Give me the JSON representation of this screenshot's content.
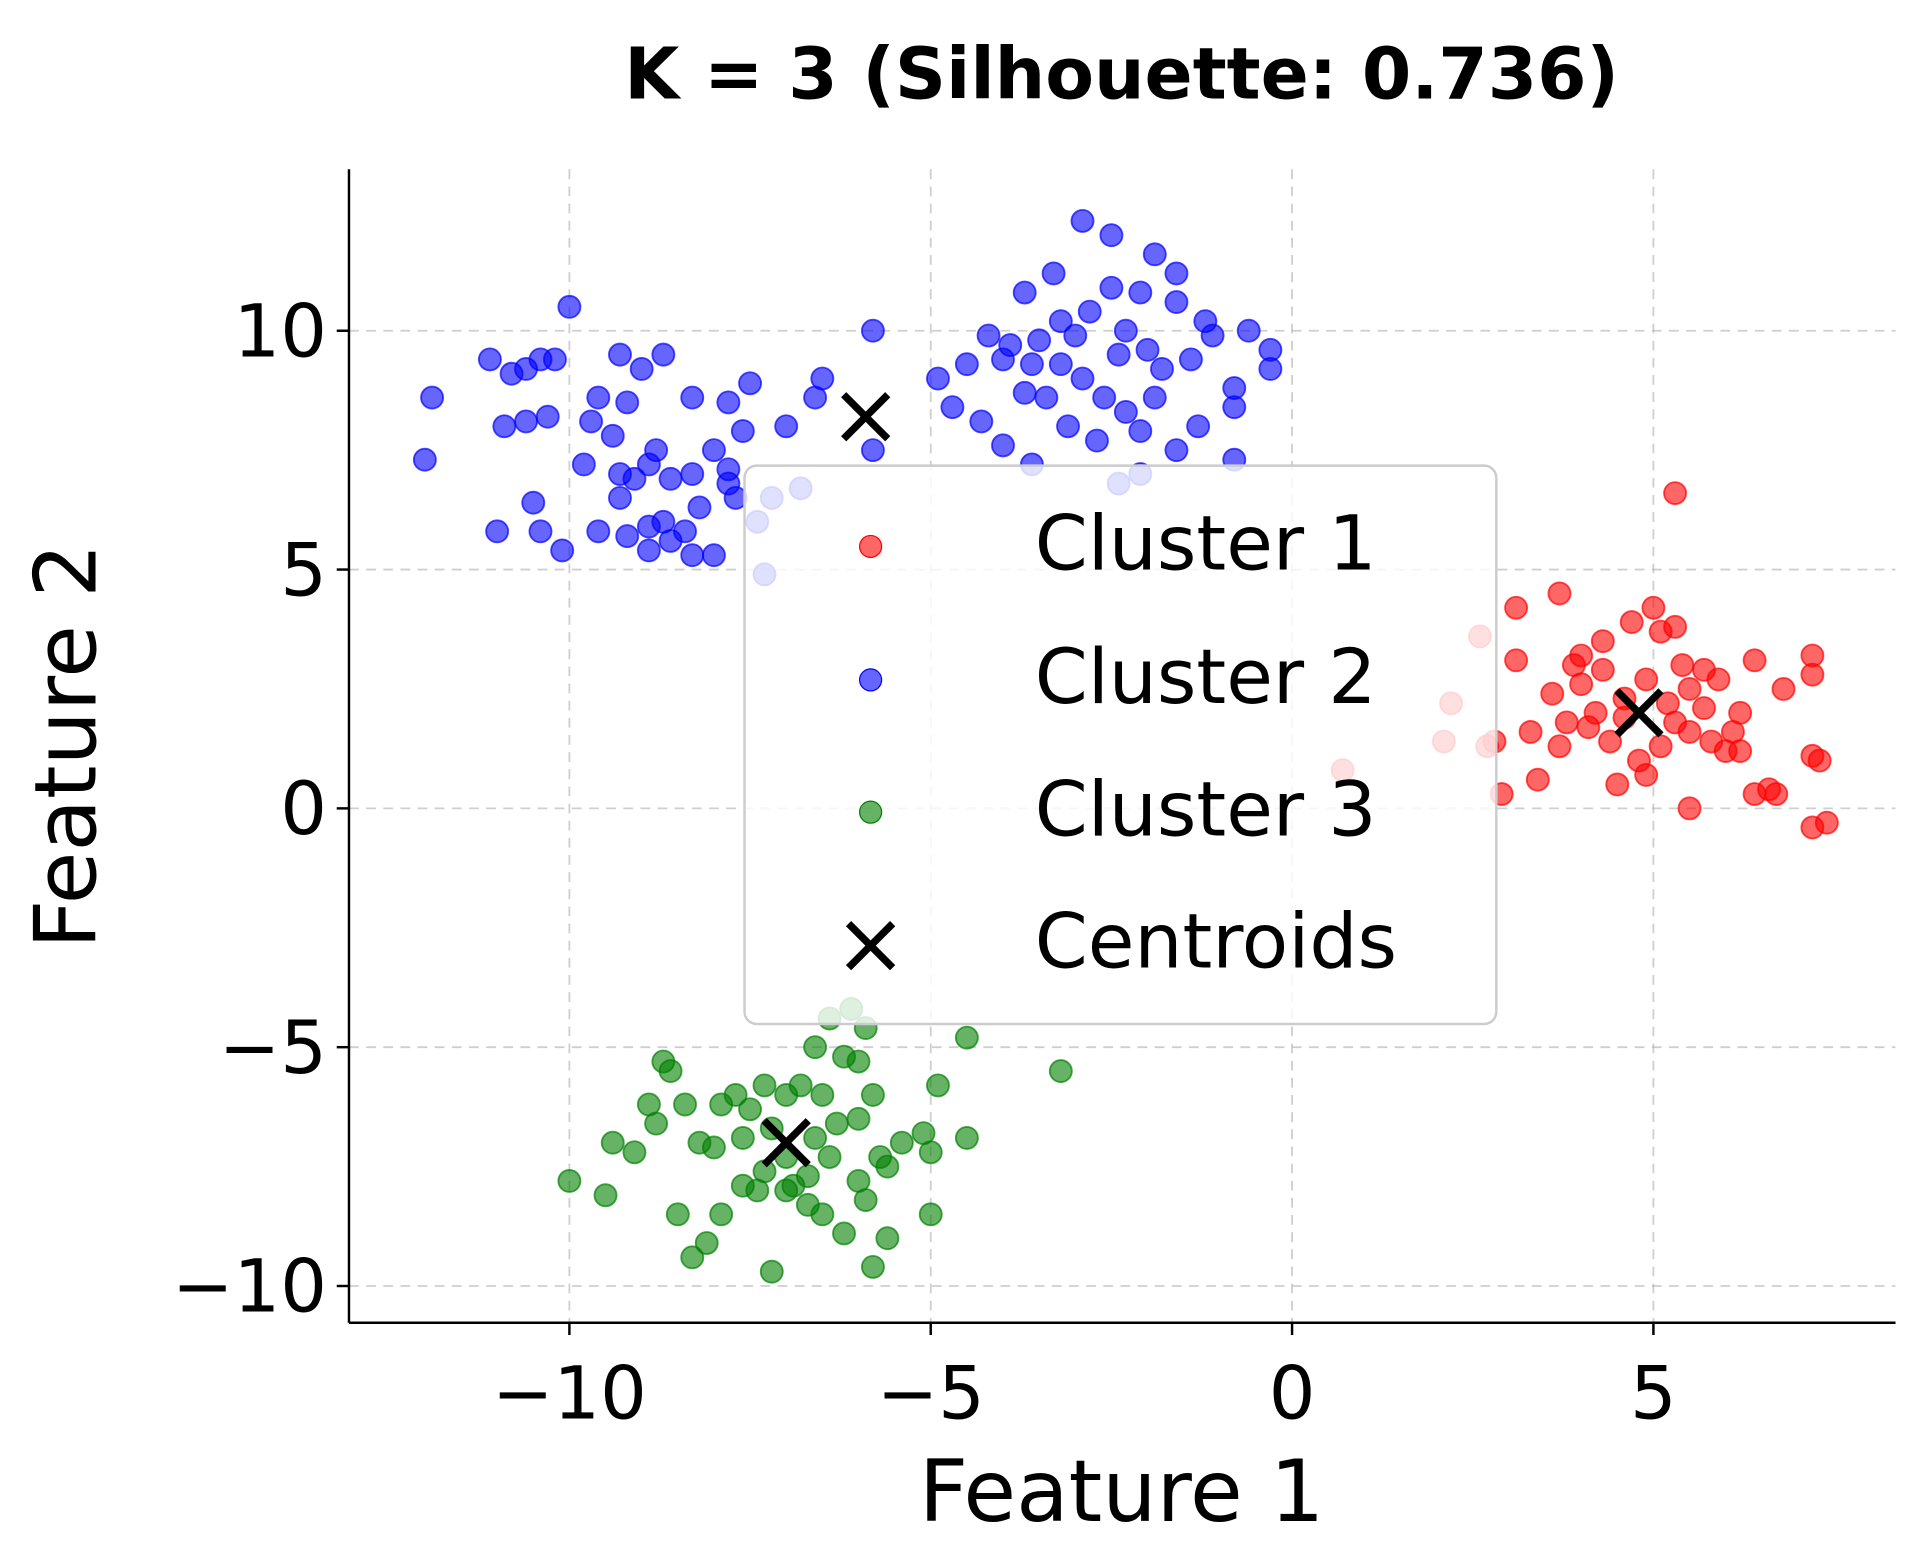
{
  "chart_data": {
    "type": "scatter",
    "title": "K = 3 (Silhouette: 0.736)",
    "xlabel": "Feature 1",
    "ylabel": "Feature 2",
    "xlim": [
      -13.05,
      8.35
    ],
    "ylim": [
      -10.77,
      13.38
    ],
    "xticks": [
      -10,
      -5,
      0,
      5
    ],
    "xtick_labels": [
      "−10",
      "−5",
      "0",
      "5"
    ],
    "yticks": [
      -10,
      -5,
      0,
      5,
      10
    ],
    "ytick_labels": [
      "−10",
      "−5",
      "0",
      "5",
      "10"
    ],
    "grid": true,
    "legend_position": "center",
    "series": [
      {
        "name": "Cluster 1",
        "color": "#ff0000",
        "points": [
          [
            5.3,
            6.6
          ],
          [
            3.1,
            4.2
          ],
          [
            3.7,
            4.5
          ],
          [
            5.0,
            4.2
          ],
          [
            4.7,
            3.9
          ],
          [
            5.3,
            3.8
          ],
          [
            4.3,
            3.5
          ],
          [
            5.1,
            3.7
          ],
          [
            4.0,
            3.2
          ],
          [
            5.4,
            3.0
          ],
          [
            5.7,
            2.9
          ],
          [
            6.4,
            3.1
          ],
          [
            7.2,
            3.2
          ],
          [
            7.2,
            2.8
          ],
          [
            6.8,
            2.5
          ],
          [
            3.1,
            3.1
          ],
          [
            2.6,
            3.6
          ],
          [
            2.2,
            2.2
          ],
          [
            2.1,
            1.4
          ],
          [
            2.8,
            1.4
          ],
          [
            2.7,
            1.3
          ],
          [
            3.3,
            1.6
          ],
          [
            3.6,
            2.4
          ],
          [
            3.8,
            1.8
          ],
          [
            3.7,
            1.3
          ],
          [
            4.2,
            2.0
          ],
          [
            4.4,
            1.4
          ],
          [
            4.5,
            0.5
          ],
          [
            4.8,
            1.0
          ],
          [
            4.9,
            0.7
          ],
          [
            5.1,
            1.3
          ],
          [
            5.3,
            1.8
          ],
          [
            5.5,
            1.6
          ],
          [
            5.7,
            2.1
          ],
          [
            6.1,
            1.6
          ],
          [
            6.2,
            1.2
          ],
          [
            6.4,
            0.3
          ],
          [
            6.6,
            0.4
          ],
          [
            6.7,
            0.3
          ],
          [
            7.2,
            1.1
          ],
          [
            7.3,
            1.0
          ],
          [
            7.2,
            -0.4
          ],
          [
            7.4,
            -0.3
          ],
          [
            5.5,
            0.0
          ],
          [
            2.9,
            0.3
          ],
          [
            3.4,
            0.6
          ],
          [
            0.7,
            0.8
          ],
          [
            4.0,
            2.6
          ],
          [
            4.3,
            2.9
          ],
          [
            4.6,
            2.3
          ],
          [
            4.9,
            2.7
          ],
          [
            5.5,
            2.5
          ],
          [
            5.9,
            2.7
          ],
          [
            6.2,
            2.0
          ],
          [
            6.0,
            1.2
          ],
          [
            4.1,
            1.7
          ],
          [
            3.9,
            3.0
          ],
          [
            4.6,
            1.9
          ],
          [
            5.2,
            2.2
          ],
          [
            5.8,
            1.4
          ]
        ]
      },
      {
        "name": "Cluster 2",
        "color": "#0000ff",
        "points": [
          [
            -12,
            7.3
          ],
          [
            -11.9,
            8.6
          ],
          [
            -11.1,
            9.4
          ],
          [
            -10.8,
            9.1
          ],
          [
            -10.6,
            9.2
          ],
          [
            -11,
            5.8
          ],
          [
            -10.5,
            6.4
          ],
          [
            -10.4,
            5.8
          ],
          [
            -10.1,
            5.4
          ],
          [
            -10.0,
            10.5
          ],
          [
            -10.4,
            9.4
          ],
          [
            -10.2,
            9.4
          ],
          [
            -9.3,
            9.5
          ],
          [
            -9.0,
            9.2
          ],
          [
            -8.7,
            9.5
          ],
          [
            -9.6,
            8.6
          ],
          [
            -9.2,
            8.5
          ],
          [
            -8.3,
            8.6
          ],
          [
            -7.8,
            8.5
          ],
          [
            -7.5,
            8.9
          ],
          [
            -7.0,
            8.0
          ],
          [
            -7.6,
            7.9
          ],
          [
            -8.0,
            7.5
          ],
          [
            -7.8,
            7.1
          ],
          [
            -8.3,
            7.0
          ],
          [
            -8.6,
            6.9
          ],
          [
            -8.9,
            7.2
          ],
          [
            -9.1,
            6.9
          ],
          [
            -9.3,
            7.0
          ],
          [
            -9.8,
            7.2
          ],
          [
            -10.3,
            8.2
          ],
          [
            -10.6,
            8.1
          ],
          [
            -10.9,
            8.0
          ],
          [
            -9.7,
            8.1
          ],
          [
            -9.4,
            7.8
          ],
          [
            -8.8,
            7.5
          ],
          [
            -8.2,
            6.3
          ],
          [
            -8.4,
            5.8
          ],
          [
            -8.6,
            5.6
          ],
          [
            -8.9,
            5.9
          ],
          [
            -9.2,
            5.7
          ],
          [
            -9.6,
            5.8
          ],
          [
            -9.3,
            6.5
          ],
          [
            -8.7,
            6.0
          ],
          [
            -8.0,
            5.3
          ],
          [
            -8.3,
            5.3
          ],
          [
            -7.7,
            6.5
          ],
          [
            -7.2,
            6.5
          ],
          [
            -7.8,
            6.8
          ],
          [
            -7.4,
            6.0
          ],
          [
            -6.8,
            6.7
          ],
          [
            -7.3,
            4.9
          ],
          [
            -6.6,
            8.6
          ],
          [
            -6.5,
            9.0
          ],
          [
            -5.8,
            10.0
          ],
          [
            -5.8,
            7.5
          ],
          [
            -8.9,
            5.4
          ],
          [
            -2.9,
            12.3
          ],
          [
            -2.5,
            12.0
          ],
          [
            -1.9,
            11.6
          ],
          [
            -1.6,
            11.2
          ],
          [
            -3.3,
            11.2
          ],
          [
            -3.7,
            10.8
          ],
          [
            -2.5,
            10.9
          ],
          [
            -2.1,
            10.8
          ],
          [
            -1.6,
            10.6
          ],
          [
            -1.2,
            10.2
          ],
          [
            -0.6,
            10.0
          ],
          [
            -0.3,
            9.6
          ],
          [
            -0.3,
            9.2
          ],
          [
            -0.8,
            8.8
          ],
          [
            -0.8,
            8.4
          ],
          [
            -1.1,
            9.9
          ],
          [
            -1.3,
            8.0
          ],
          [
            -1.6,
            7.5
          ],
          [
            -2.1,
            7.9
          ],
          [
            -2.3,
            8.3
          ],
          [
            -2.6,
            8.6
          ],
          [
            -2.9,
            9.0
          ],
          [
            -3.2,
            9.3
          ],
          [
            -3.5,
            9.8
          ],
          [
            -3.9,
            9.7
          ],
          [
            -4.0,
            9.4
          ],
          [
            -4.5,
            9.3
          ],
          [
            -4.9,
            9.0
          ],
          [
            -4.7,
            8.4
          ],
          [
            -4.3,
            8.1
          ],
          [
            -4.0,
            7.6
          ],
          [
            -3.6,
            7.2
          ],
          [
            -3.4,
            8.6
          ],
          [
            -3.7,
            8.7
          ],
          [
            -3.1,
            8.0
          ],
          [
            -2.4,
            9.5
          ],
          [
            -2.3,
            10.0
          ],
          [
            -2.0,
            9.6
          ],
          [
            -1.8,
            9.2
          ],
          [
            -1.4,
            9.4
          ],
          [
            -2.8,
            10.4
          ],
          [
            -3.2,
            10.2
          ],
          [
            -3.6,
            9.3
          ],
          [
            -2.1,
            7.0
          ],
          [
            -2.4,
            6.8
          ],
          [
            -0.8,
            7.3
          ],
          [
            -2.7,
            7.7
          ],
          [
            -1.9,
            8.6
          ],
          [
            -4.2,
            9.9
          ],
          [
            -3.0,
            9.9
          ]
        ]
      },
      {
        "name": "Cluster 3",
        "color": "#008000",
        "points": [
          [
            -10,
            -7.8
          ],
          [
            -9.5,
            -8.1
          ],
          [
            -9.4,
            -7.0
          ],
          [
            -9.1,
            -7.2
          ],
          [
            -8.9,
            -6.2
          ],
          [
            -8.8,
            -6.6
          ],
          [
            -8.7,
            -5.3
          ],
          [
            -8.6,
            -5.5
          ],
          [
            -8.4,
            -6.2
          ],
          [
            -8.2,
            -7.0
          ],
          [
            -8.0,
            -7.1
          ],
          [
            -7.9,
            -6.2
          ],
          [
            -7.7,
            -6.0
          ],
          [
            -7.5,
            -6.3
          ],
          [
            -7.3,
            -5.8
          ],
          [
            -7.2,
            -6.7
          ],
          [
            -7.0,
            -6.0
          ],
          [
            -6.8,
            -5.8
          ],
          [
            -6.6,
            -5.0
          ],
          [
            -6.4,
            -4.4
          ],
          [
            -6.1,
            -4.2
          ],
          [
            -5.9,
            -4.6
          ],
          [
            -6.2,
            -5.2
          ],
          [
            -6.0,
            -5.3
          ],
          [
            -5.8,
            -6.0
          ],
          [
            -6.3,
            -6.6
          ],
          [
            -6.6,
            -6.9
          ],
          [
            -7.0,
            -7.3
          ],
          [
            -7.3,
            -7.6
          ],
          [
            -7.6,
            -7.9
          ],
          [
            -7.9,
            -8.5
          ],
          [
            -8.1,
            -9.1
          ],
          [
            -8.3,
            -9.4
          ],
          [
            -7.2,
            -9.7
          ],
          [
            -6.5,
            -8.5
          ],
          [
            -6.2,
            -8.9
          ],
          [
            -5.8,
            -9.6
          ],
          [
            -5.6,
            -9.0
          ],
          [
            -5.0,
            -8.5
          ],
          [
            -5.6,
            -7.5
          ],
          [
            -5.4,
            -7.0
          ],
          [
            -5.1,
            -6.8
          ],
          [
            -5.0,
            -7.2
          ],
          [
            -4.9,
            -5.8
          ],
          [
            -4.5,
            -6.9
          ],
          [
            -4.5,
            -4.8
          ],
          [
            -3.2,
            -5.5
          ],
          [
            -6.9,
            -7.9
          ],
          [
            -6.7,
            -8.3
          ],
          [
            -6.0,
            -7.8
          ],
          [
            -5.9,
            -8.2
          ],
          [
            -6.4,
            -7.3
          ],
          [
            -6.7,
            -7.7
          ],
          [
            -7.0,
            -8.0
          ],
          [
            -7.4,
            -8.0
          ],
          [
            -8.5,
            -8.5
          ],
          [
            -6.5,
            -6.0
          ],
          [
            -6.0,
            -6.5
          ],
          [
            -5.7,
            -7.3
          ],
          [
            -7.6,
            -6.9
          ]
        ]
      }
    ],
    "centroids": {
      "name": "Centroids",
      "color": "#000000",
      "marker": "x",
      "points": [
        [
          4.8,
          2.0
        ],
        [
          -5.9,
          8.2
        ],
        [
          -7.0,
          -7.0
        ]
      ]
    }
  }
}
